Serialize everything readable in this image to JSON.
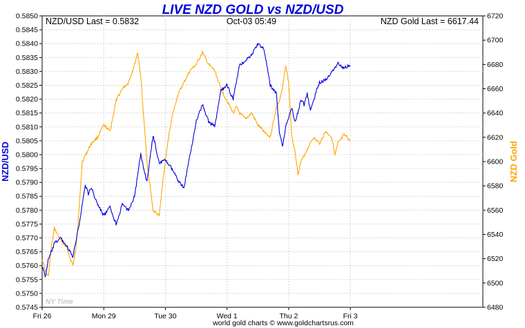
{
  "chart_data": {
    "type": "line",
    "title": "LIVE NZD GOLD vs NZD/USD",
    "header": {
      "left": "NZD/USD Last = 0.5832",
      "center": "Oct-03  05:49",
      "right": "NZD Gold Last = 6617.44"
    },
    "watermark": "NY Time",
    "credit": "world gold charts © www.goldchartsrus.com",
    "ylabel_left": "NZD/USD",
    "ylabel_right": "NZD Gold",
    "ylim_left": [
      0.5745,
      0.585
    ],
    "ylim_right": [
      6480,
      6720
    ],
    "yticks_left": [
      "0.5745",
      "0.5750",
      "0.5755",
      "0.5760",
      "0.5765",
      "0.5770",
      "0.5775",
      "0.5780",
      "0.5785",
      "0.5790",
      "0.5795",
      "0.5800",
      "0.5805",
      "0.5810",
      "0.5815",
      "0.5820",
      "0.5825",
      "0.5830",
      "0.5835",
      "0.5840",
      "0.5845",
      "0.5850"
    ],
    "yticks_right": [
      "6480",
      "6500",
      "6520",
      "6540",
      "6560",
      "6580",
      "6600",
      "6620",
      "6640",
      "6660",
      "6680",
      "6700",
      "6720"
    ],
    "xlim": [
      0,
      7.15
    ],
    "xticks": [
      {
        "label": "Fri 26",
        "x": 0
      },
      {
        "label": "Mon 29",
        "x": 1
      },
      {
        "label": "Tue 30",
        "x": 2
      },
      {
        "label": "Wed 1",
        "x": 3
      },
      {
        "label": "Thu 2",
        "x": 4
      },
      {
        "label": "Fri 3",
        "x": 5
      }
    ],
    "series": [
      {
        "name": "NZD/USD",
        "axis": "left",
        "color": "#0000dd",
        "x": [
          0,
          0.05,
          0.1,
          0.15,
          0.2,
          0.3,
          0.4,
          0.5,
          0.6,
          0.7,
          0.75,
          0.8,
          0.9,
          1.0,
          1.1,
          1.2,
          1.3,
          1.4,
          1.5,
          1.6,
          1.7,
          1.8,
          1.9,
          2.0,
          2.1,
          2.2,
          2.3,
          2.4,
          2.5,
          2.6,
          2.7,
          2.8,
          2.9,
          3.0,
          3.1,
          3.15,
          3.2,
          3.3,
          3.4,
          3.5,
          3.6,
          3.7,
          3.8,
          3.85,
          3.9,
          3.95,
          4.0,
          4.05,
          4.1,
          4.15,
          4.2,
          4.25,
          4.3,
          4.35,
          4.4,
          4.45,
          4.5,
          4.6,
          4.7,
          4.8,
          4.9,
          4.95,
          5.0
        ],
        "values": [
          0.576,
          0.5756,
          0.5762,
          0.5765,
          0.5768,
          0.577,
          0.5767,
          0.5763,
          0.5775,
          0.5789,
          0.5786,
          0.5788,
          0.5782,
          0.5778,
          0.5781,
          0.5775,
          0.5782,
          0.578,
          0.5785,
          0.58,
          0.579,
          0.5807,
          0.5797,
          0.5798,
          0.5795,
          0.5791,
          0.5788,
          0.58,
          0.5812,
          0.5818,
          0.5812,
          0.581,
          0.5823,
          0.5825,
          0.582,
          0.5826,
          0.5832,
          0.5834,
          0.5836,
          0.584,
          0.5838,
          0.5825,
          0.5822,
          0.5808,
          0.5803,
          0.581,
          0.5813,
          0.5817,
          0.5812,
          0.5815,
          0.582,
          0.5818,
          0.5822,
          0.5816,
          0.5819,
          0.5823,
          0.5826,
          0.5827,
          0.583,
          0.5833,
          0.5831,
          0.5832,
          0.5832
        ]
      },
      {
        "name": "NZD Gold",
        "axis": "right",
        "color": "#ffa500",
        "x": [
          0,
          0.05,
          0.1,
          0.15,
          0.2,
          0.25,
          0.3,
          0.4,
          0.45,
          0.5,
          0.55,
          0.6,
          0.65,
          0.7,
          0.8,
          0.9,
          1.0,
          1.1,
          1.2,
          1.3,
          1.4,
          1.5,
          1.55,
          1.6,
          1.7,
          1.8,
          1.9,
          1.95,
          2.0,
          2.05,
          2.1,
          2.2,
          2.3,
          2.4,
          2.5,
          2.6,
          2.7,
          2.8,
          2.9,
          3.0,
          3.1,
          3.15,
          3.2,
          3.3,
          3.4,
          3.5,
          3.6,
          3.7,
          3.8,
          3.85,
          3.9,
          3.95,
          4.0,
          4.05,
          4.1,
          4.15,
          4.2,
          4.3,
          4.4,
          4.5,
          4.6,
          4.7,
          4.75,
          4.8,
          4.9,
          4.95,
          5.0
        ],
        "values": [
          6520,
          6510,
          6505,
          6530,
          6545,
          6540,
          6535,
          6530,
          6520,
          6515,
          6530,
          6560,
          6600,
          6605,
          6615,
          6620,
          6630,
          6625,
          6650,
          6660,
          6665,
          6680,
          6690,
          6670,
          6600,
          6560,
          6555,
          6580,
          6600,
          6620,
          6635,
          6655,
          6665,
          6675,
          6680,
          6690,
          6680,
          6675,
          6660,
          6650,
          6640,
          6645,
          6640,
          6635,
          6640,
          6630,
          6625,
          6620,
          6645,
          6650,
          6660,
          6680,
          6665,
          6620,
          6610,
          6590,
          6600,
          6610,
          6620,
          6615,
          6625,
          6620,
          6605,
          6615,
          6622,
          6620,
          6617
        ]
      }
    ]
  }
}
